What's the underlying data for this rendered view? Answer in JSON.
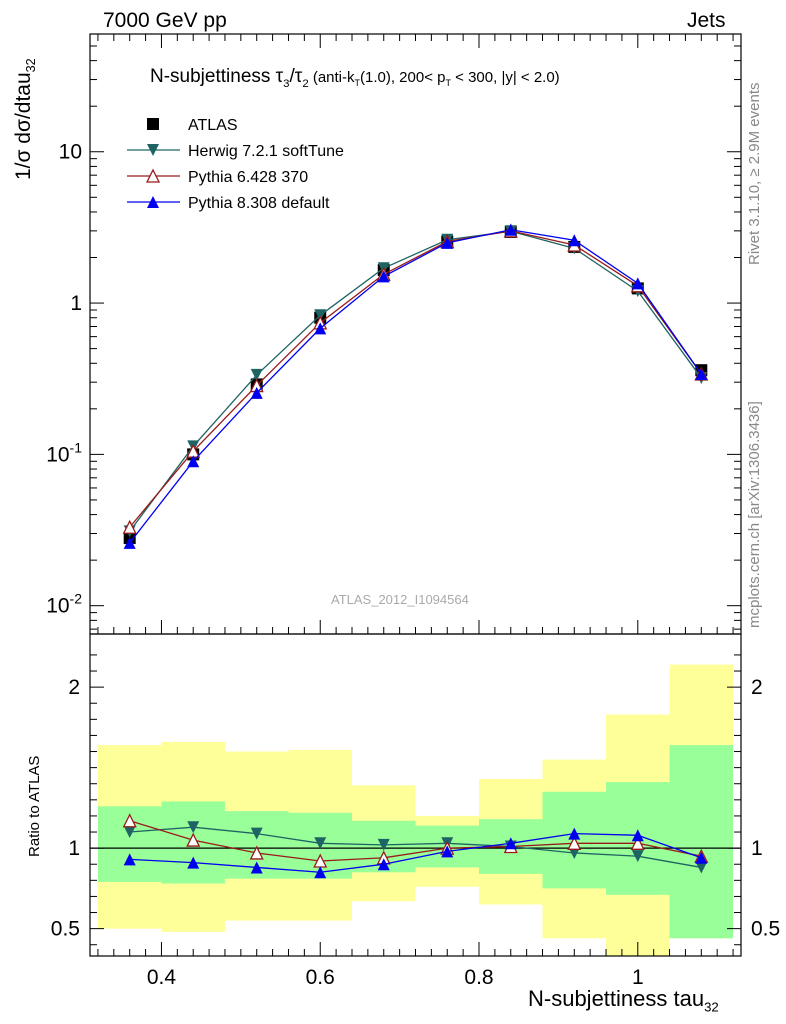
{
  "header": {
    "left": "7000 GeV pp",
    "right": "Jets"
  },
  "side_labels": {
    "top": "Rivet 3.1.10, ≥ 2.9M events",
    "bottom": "mcplots.cern.ch [arXiv:1306.3436]"
  },
  "title": {
    "main": "N-subjettiness τ",
    "sub3": "3",
    "slash": "/τ",
    "sub2": "2",
    "detail1": " (anti-k",
    "subT1": "T",
    "detail2": "(1.0), 200< p",
    "subT2": "T",
    "detail3": " < 300, |y| < 2.0)"
  },
  "watermark": "ATLAS_2012_I1094564",
  "y_label": {
    "main": "1/σ dσ/dtau",
    "sub": "32"
  },
  "ratio_label": "Ratio to ATLAS",
  "x_label": {
    "main": "N-subjettiness tau",
    "sub": "32"
  },
  "legend": [
    {
      "name": "ATLAS",
      "color": "#000000",
      "marker": "square"
    },
    {
      "name": "Herwig 7.2.1 softTune",
      "color": "#1f6464",
      "marker": "triangle-down"
    },
    {
      "name": "Pythia 6.428 370",
      "color": "#9a1a1a",
      "marker": "triangle-open"
    },
    {
      "name": "Pythia 8.308 default",
      "color": "#0000ee",
      "marker": "triangle-up"
    }
  ],
  "chart_data": [
    {
      "type": "line",
      "panel": "main",
      "log_y": true,
      "xlim": [
        0.31,
        1.13
      ],
      "ylim": [
        0.0065,
        60
      ],
      "y_ticks": [
        "10^-2",
        "10^-1",
        "1",
        "10"
      ],
      "x": [
        0.36,
        0.44,
        0.52,
        0.6,
        0.68,
        0.76,
        0.84,
        0.92,
        1.0,
        1.08
      ],
      "series": [
        {
          "name": "ATLAS",
          "values": [
            0.028,
            0.1,
            0.29,
            0.8,
            1.65,
            2.55,
            2.95,
            2.35,
            1.25,
            0.36
          ]
        },
        {
          "name": "Herwig 7.2.1 softTune",
          "values": [
            0.031,
            0.113,
            0.335,
            0.83,
            1.7,
            2.62,
            2.98,
            2.3,
            1.2,
            0.32
          ]
        },
        {
          "name": "Pythia 6.428 370",
          "values": [
            0.033,
            0.105,
            0.285,
            0.74,
            1.55,
            2.55,
            3.0,
            2.42,
            1.3,
            0.34
          ]
        },
        {
          "name": "Pythia 8.308 default",
          "values": [
            0.026,
            0.09,
            0.255,
            0.68,
            1.5,
            2.5,
            3.05,
            2.6,
            1.35,
            0.34
          ]
        }
      ]
    },
    {
      "type": "line",
      "panel": "ratio",
      "xlim": [
        0.31,
        1.13
      ],
      "ylim": [
        0.33,
        2.33
      ],
      "x_ticks": [
        "0.4",
        "0.6",
        "0.8",
        "1"
      ],
      "y_ticks": [
        "0.5",
        "1",
        "2"
      ],
      "bin_edges": [
        0.32,
        0.4,
        0.48,
        0.56,
        0.64,
        0.72,
        0.8,
        0.88,
        0.96,
        1.04,
        1.12
      ],
      "band_outer": {
        "lo": [
          0.5,
          0.48,
          0.55,
          0.55,
          0.67,
          0.76,
          0.65,
          0.44,
          0.33,
          0.44
        ],
        "hi": [
          1.64,
          1.66,
          1.6,
          1.61,
          1.39,
          1.2,
          1.43,
          1.55,
          1.83,
          2.14
        ]
      },
      "band_inner": {
        "lo": [
          0.79,
          0.78,
          0.81,
          0.81,
          0.85,
          0.88,
          0.84,
          0.75,
          0.71,
          0.44
        ],
        "hi": [
          1.26,
          1.29,
          1.23,
          1.22,
          1.17,
          1.14,
          1.18,
          1.35,
          1.41,
          1.64
        ]
      },
      "x": [
        0.36,
        0.44,
        0.52,
        0.6,
        0.68,
        0.76,
        0.84,
        0.92,
        1.0,
        1.08
      ],
      "series": [
        {
          "name": "Herwig 7.2.1 softTune",
          "values": [
            1.1,
            1.13,
            1.09,
            1.03,
            1.02,
            1.03,
            1.01,
            0.97,
            0.95,
            0.88
          ]
        },
        {
          "name": "Pythia 6.428 370",
          "values": [
            1.17,
            1.05,
            0.97,
            0.92,
            0.94,
            1.0,
            1.01,
            1.03,
            1.03,
            0.95
          ]
        },
        {
          "name": "Pythia 8.308 default",
          "values": [
            0.93,
            0.91,
            0.88,
            0.85,
            0.9,
            0.98,
            1.03,
            1.09,
            1.08,
            0.94
          ]
        }
      ]
    }
  ]
}
